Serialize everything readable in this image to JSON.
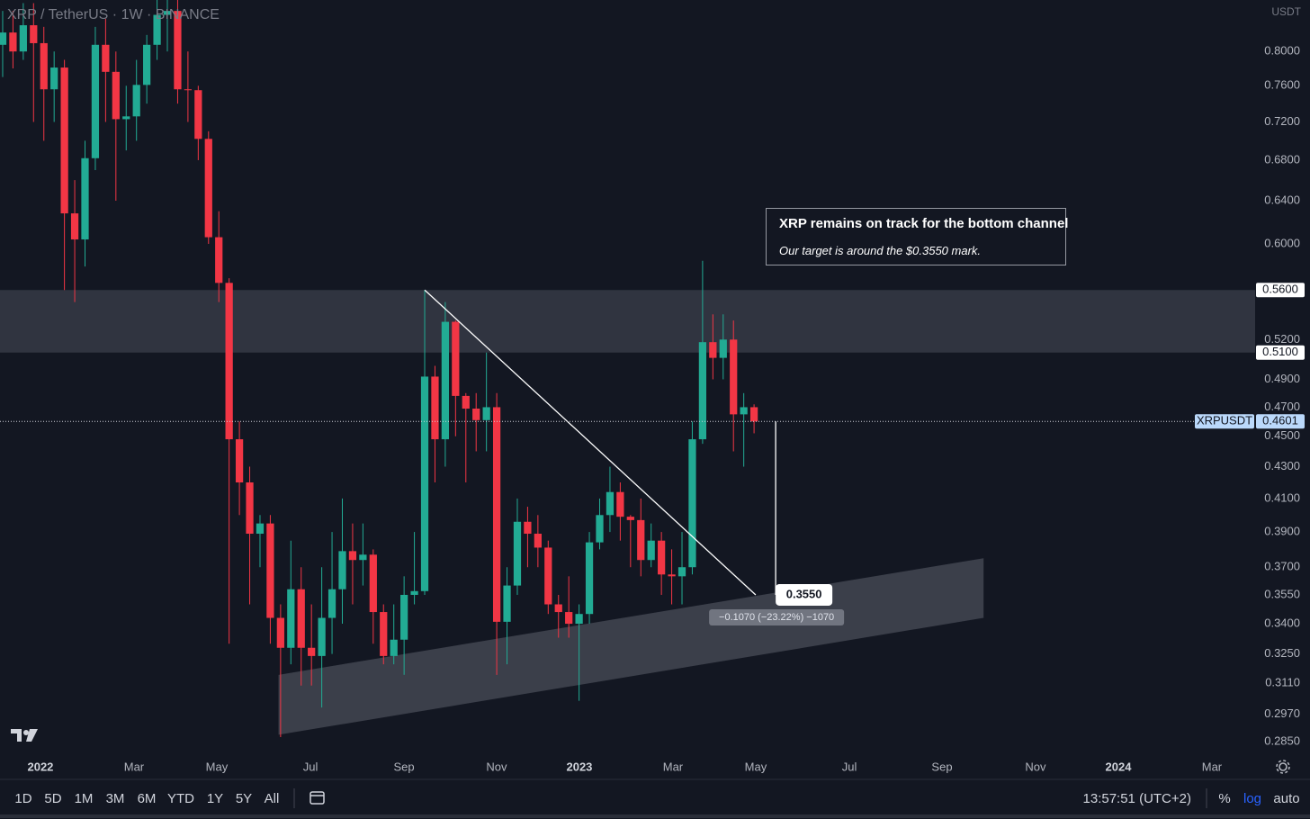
{
  "chart_data": {
    "type": "candlestick",
    "title": "XRP / TetherUS · 1W · BINANCE",
    "currency": "USDT",
    "log_scale": true,
    "grid": false,
    "up_color": "#22ab94",
    "down_color": "#f23645",
    "open": [
      0.808,
      0.823,
      0.8,
      0.832,
      0.81,
      0.756,
      0.781,
      0.628,
      0.604,
      0.682,
      0.808,
      0.776,
      0.723,
      0.726,
      0.761,
      0.808,
      0.845,
      0.85,
      0.756,
      0.755,
      0.702,
      0.606,
      0.566,
      0.448,
      0.42,
      0.389,
      0.395,
      0.343,
      0.328,
      0.358,
      0.328,
      0.324,
      0.343,
      0.358,
      0.379,
      0.374,
      0.377,
      0.346,
      0.324,
      0.332,
      0.355,
      0.357,
      0.492,
      0.448,
      0.534,
      0.478,
      0.469,
      0.461,
      0.47,
      0.341,
      0.36,
      0.396,
      0.389,
      0.381,
      0.35,
      0.346,
      0.34,
      0.345,
      0.384,
      0.4,
      0.414,
      0.399,
      0.397,
      0.374,
      0.385,
      0.366,
      0.365,
      0.37,
      0.448,
      0.518,
      0.506,
      0.52,
      0.465,
      0.47
    ],
    "high": [
      0.85,
      0.85,
      0.86,
      0.86,
      0.83,
      0.8,
      0.79,
      0.66,
      0.7,
      0.83,
      0.84,
      0.8,
      0.76,
      0.79,
      0.82,
      0.87,
      0.87,
      0.87,
      0.8,
      0.76,
      0.71,
      0.63,
      0.57,
      0.46,
      0.43,
      0.4,
      0.4,
      0.35,
      0.385,
      0.37,
      0.35,
      0.37,
      0.39,
      0.41,
      0.395,
      0.395,
      0.38,
      0.35,
      0.35,
      0.365,
      0.39,
      0.56,
      0.5,
      0.55,
      0.535,
      0.48,
      0.48,
      0.51,
      0.48,
      0.37,
      0.41,
      0.405,
      0.4,
      0.385,
      0.355,
      0.365,
      0.35,
      0.39,
      0.41,
      0.43,
      0.42,
      0.4,
      0.41,
      0.395,
      0.39,
      0.38,
      0.39,
      0.46,
      0.585,
      0.54,
      0.54,
      0.535,
      0.48,
      0.472
    ],
    "low": [
      0.77,
      0.78,
      0.79,
      0.72,
      0.7,
      0.72,
      0.56,
      0.55,
      0.58,
      0.67,
      0.72,
      0.64,
      0.69,
      0.7,
      0.74,
      0.79,
      0.8,
      0.74,
      0.72,
      0.68,
      0.6,
      0.55,
      0.33,
      0.4,
      0.35,
      0.37,
      0.33,
      0.287,
      0.32,
      0.31,
      0.31,
      0.3,
      0.325,
      0.34,
      0.35,
      0.36,
      0.33,
      0.32,
      0.32,
      0.315,
      0.35,
      0.355,
      0.42,
      0.43,
      0.45,
      0.42,
      0.44,
      0.44,
      0.315,
      0.32,
      0.355,
      0.37,
      0.37,
      0.345,
      0.333,
      0.333,
      0.303,
      0.34,
      0.38,
      0.39,
      0.385,
      0.37,
      0.365,
      0.37,
      0.355,
      0.35,
      0.35,
      0.366,
      0.445,
      0.49,
      0.49,
      0.44,
      0.43,
      0.452
    ],
    "close": [
      0.823,
      0.8,
      0.832,
      0.81,
      0.756,
      0.781,
      0.628,
      0.604,
      0.682,
      0.808,
      0.776,
      0.723,
      0.726,
      0.761,
      0.808,
      0.845,
      0.85,
      0.756,
      0.755,
      0.702,
      0.606,
      0.566,
      0.448,
      0.42,
      0.389,
      0.395,
      0.343,
      0.328,
      0.358,
      0.328,
      0.324,
      0.343,
      0.358,
      0.379,
      0.374,
      0.377,
      0.346,
      0.324,
      0.332,
      0.355,
      0.357,
      0.492,
      0.448,
      0.534,
      0.478,
      0.469,
      0.461,
      0.47,
      0.341,
      0.36,
      0.396,
      0.389,
      0.381,
      0.35,
      0.346,
      0.34,
      0.345,
      0.384,
      0.4,
      0.414,
      0.399,
      0.397,
      0.374,
      0.385,
      0.366,
      0.365,
      0.37,
      0.448,
      0.518,
      0.506,
      0.52,
      0.465,
      0.47,
      0.4601
    ],
    "xlim": [
      -0.26,
      121.68
    ],
    "xticks": [
      {
        "value": 3.67,
        "label": "2022"
      },
      {
        "value": 12.76,
        "label": "Mar"
      },
      {
        "value": 20.8,
        "label": "May"
      },
      {
        "value": 29.9,
        "label": "Jul"
      },
      {
        "value": 38.99,
        "label": "Sep"
      },
      {
        "value": 47.99,
        "label": "Nov"
      },
      {
        "value": 56.03,
        "label": "2023"
      },
      {
        "value": 65.12,
        "label": "Mar"
      },
      {
        "value": 73.16,
        "label": "May"
      },
      {
        "value": 82.26,
        "label": "Jul"
      },
      {
        "value": 91.26,
        "label": "Sep"
      },
      {
        "value": 100.35,
        "label": "Nov"
      },
      {
        "value": 108.39,
        "label": "2024"
      },
      {
        "value": 117.48,
        "label": "Mar"
      }
    ],
    "ylim": [
      0.279,
      0.864
    ],
    "yticks": [
      {
        "value": 0.8,
        "label": "0.8000"
      },
      {
        "value": 0.76,
        "label": "0.7600"
      },
      {
        "value": 0.72,
        "label": "0.7200"
      },
      {
        "value": 0.68,
        "label": "0.6800"
      },
      {
        "value": 0.64,
        "label": "0.6400"
      },
      {
        "value": 0.6,
        "label": "0.6000"
      },
      {
        "value": 0.52,
        "label": "0.5200"
      },
      {
        "value": 0.49,
        "label": "0.4900"
      },
      {
        "value": 0.47,
        "label": "0.4700"
      },
      {
        "value": 0.45,
        "label": "0.4500"
      },
      {
        "value": 0.43,
        "label": "0.4300"
      },
      {
        "value": 0.41,
        "label": "0.4100"
      },
      {
        "value": 0.39,
        "label": "0.3900"
      },
      {
        "value": 0.37,
        "label": "0.3700"
      },
      {
        "value": 0.355,
        "label": "0.3550"
      },
      {
        "value": 0.34,
        "label": "0.3400"
      },
      {
        "value": 0.325,
        "label": "0.3250"
      },
      {
        "value": 0.311,
        "label": "0.3110"
      },
      {
        "value": 0.297,
        "label": "0.2970"
      },
      {
        "value": 0.285,
        "label": "0.2850"
      }
    ],
    "zone": {
      "top": {
        "value": 0.56,
        "label": "0.5600"
      },
      "bottom": {
        "value": 0.51,
        "label": "0.5100"
      }
    },
    "channel": {
      "x": [
        26.8,
        95.3
      ],
      "upper": [
        0.315,
        0.375
      ],
      "lower": [
        0.288,
        0.343
      ]
    },
    "trendline": {
      "x": [
        41.0,
        73.16
      ],
      "y": [
        0.56,
        0.355
      ]
    },
    "last_price": {
      "symbol": "XRPUSDT",
      "value": 0.4601,
      "label": "0.4601"
    },
    "target": {
      "x": 75.1,
      "value": 0.355,
      "label": "0.3550",
      "measure": "−0.1070 (−23.22%) −1070"
    },
    "annotation": {
      "title": "XRP remains on track for the bottom channel",
      "text": "Our target is around the $0.3550 mark."
    },
    "toolbar": {
      "ranges": [
        "1D",
        "5D",
        "1M",
        "3M",
        "6M",
        "YTD",
        "1Y",
        "5Y",
        "All"
      ],
      "time": "13:57:51 (UTC+2)",
      "percent": "%",
      "log": "log",
      "auto": "auto"
    }
  }
}
